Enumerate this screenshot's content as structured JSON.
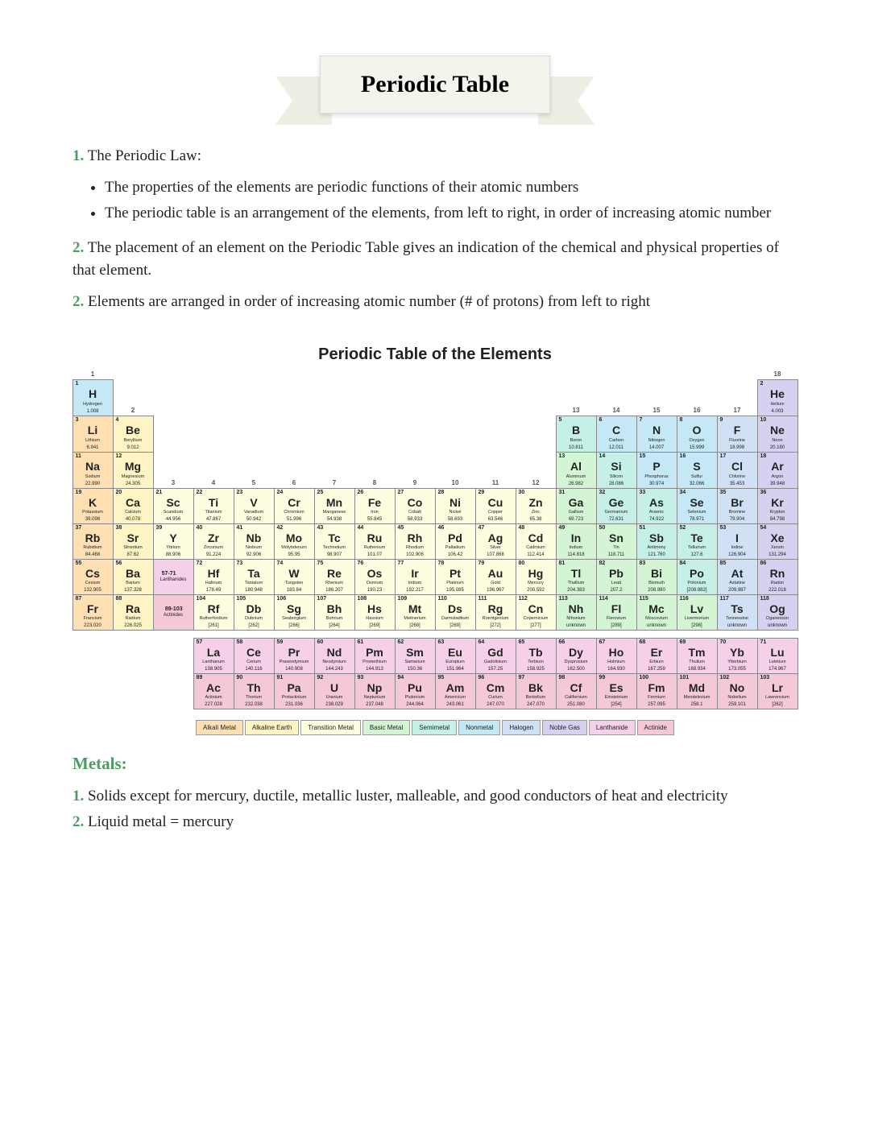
{
  "title": "Periodic Table",
  "sections": {
    "s1_num": "1.",
    "s1_label": " The Periodic Law:",
    "s1_b1": "The properties of the elements are periodic functions of their atomic numbers",
    "s1_b2": "The periodic table is an arrangement of the elements, from left to right, in order of increasing atomic number",
    "s2_num": "2.",
    "s2_text": " The placement of an element on the Periodic Table gives an indication of the chemical and physical properties of that element.",
    "s3_num": "2.",
    "s3_text": " Elements are arranged in order of increasing atomic number (# of protons) from left to right",
    "metals_heading": "Metals:",
    "m1_num": "1.",
    "m1_text": " Solids except for mercury, ductile, metallic luster, malleable, and good conductors of heat and electricity",
    "m2_num": "2.",
    "m2_text": " Liquid metal = mercury"
  },
  "pt_title": "Periodic Table of the Elements",
  "groups": [
    "1",
    "2",
    "3",
    "4",
    "5",
    "6",
    "7",
    "8",
    "9",
    "10",
    "11",
    "12",
    "13",
    "14",
    "15",
    "16",
    "17",
    "18"
  ],
  "colors": {
    "alkali": "#ffe0b3",
    "alkaline": "#fff4c4",
    "transition": "#fffde0",
    "basic": "#d4f5d4",
    "semimetal": "#c4f0e8",
    "nonmetal": "#c4e8f5",
    "halogen": "#d0e0f5",
    "noble": "#d8d0f0",
    "lanthanide": "#f5d0e8",
    "actinide": "#f5c8d8"
  },
  "legend": [
    {
      "label": "Alkali Metal",
      "color": "#ffe0b3"
    },
    {
      "label": "Alkaline Earth",
      "color": "#fff4c4"
    },
    {
      "label": "Transition Metal",
      "color": "#fffde0"
    },
    {
      "label": "Basic Metal",
      "color": "#d4f5d4"
    },
    {
      "label": "Semimetal",
      "color": "#c4f0e8"
    },
    {
      "label": "Nonmetal",
      "color": "#c4e8f5"
    },
    {
      "label": "Halogen",
      "color": "#d0e0f5"
    },
    {
      "label": "Noble Gas",
      "color": "#d8d0f0"
    },
    {
      "label": "Lanthanide",
      "color": "#f5d0e8"
    },
    {
      "label": "Actinide",
      "color": "#f5c8d8"
    }
  ],
  "lan_label": "Lanthanides",
  "act_label": "Actinides",
  "lan_range": "57-71",
  "act_range": "89-103",
  "elements": [
    {
      "z": 1,
      "s": "H",
      "n": "Hydrogen",
      "m": "1.008",
      "c": "nonmetal",
      "r": 1,
      "g": 1
    },
    {
      "z": 2,
      "s": "He",
      "n": "Helium",
      "m": "4.003",
      "c": "noble",
      "r": 1,
      "g": 18
    },
    {
      "z": 3,
      "s": "Li",
      "n": "Lithium",
      "m": "6.941",
      "c": "alkali",
      "r": 2,
      "g": 1
    },
    {
      "z": 4,
      "s": "Be",
      "n": "Beryllium",
      "m": "9.012",
      "c": "alkaline",
      "r": 2,
      "g": 2
    },
    {
      "z": 5,
      "s": "B",
      "n": "Boron",
      "m": "10.811",
      "c": "semimetal",
      "r": 2,
      "g": 13
    },
    {
      "z": 6,
      "s": "C",
      "n": "Carbon",
      "m": "12.011",
      "c": "nonmetal",
      "r": 2,
      "g": 14
    },
    {
      "z": 7,
      "s": "N",
      "n": "Nitrogen",
      "m": "14.007",
      "c": "nonmetal",
      "r": 2,
      "g": 15
    },
    {
      "z": 8,
      "s": "O",
      "n": "Oxygen",
      "m": "15.999",
      "c": "nonmetal",
      "r": 2,
      "g": 16
    },
    {
      "z": 9,
      "s": "F",
      "n": "Fluorine",
      "m": "18.998",
      "c": "halogen",
      "r": 2,
      "g": 17
    },
    {
      "z": 10,
      "s": "Ne",
      "n": "Neon",
      "m": "20.180",
      "c": "noble",
      "r": 2,
      "g": 18
    },
    {
      "z": 11,
      "s": "Na",
      "n": "Sodium",
      "m": "22.990",
      "c": "alkali",
      "r": 3,
      "g": 1
    },
    {
      "z": 12,
      "s": "Mg",
      "n": "Magnesium",
      "m": "24.305",
      "c": "alkaline",
      "r": 3,
      "g": 2
    },
    {
      "z": 13,
      "s": "Al",
      "n": "Aluminum",
      "m": "26.982",
      "c": "basic",
      "r": 3,
      "g": 13
    },
    {
      "z": 14,
      "s": "Si",
      "n": "Silicon",
      "m": "28.086",
      "c": "semimetal",
      "r": 3,
      "g": 14
    },
    {
      "z": 15,
      "s": "P",
      "n": "Phosphorus",
      "m": "30.974",
      "c": "nonmetal",
      "r": 3,
      "g": 15
    },
    {
      "z": 16,
      "s": "S",
      "n": "Sulfur",
      "m": "32.066",
      "c": "nonmetal",
      "r": 3,
      "g": 16
    },
    {
      "z": 17,
      "s": "Cl",
      "n": "Chlorine",
      "m": "35.453",
      "c": "halogen",
      "r": 3,
      "g": 17
    },
    {
      "z": 18,
      "s": "Ar",
      "n": "Argon",
      "m": "39.948",
      "c": "noble",
      "r": 3,
      "g": 18
    },
    {
      "z": 19,
      "s": "K",
      "n": "Potassium",
      "m": "39.098",
      "c": "alkali",
      "r": 4,
      "g": 1
    },
    {
      "z": 20,
      "s": "Ca",
      "n": "Calcium",
      "m": "40.078",
      "c": "alkaline",
      "r": 4,
      "g": 2
    },
    {
      "z": 21,
      "s": "Sc",
      "n": "Scandium",
      "m": "44.956",
      "c": "transition",
      "r": 4,
      "g": 3
    },
    {
      "z": 22,
      "s": "Ti",
      "n": "Titanium",
      "m": "47.867",
      "c": "transition",
      "r": 4,
      "g": 4
    },
    {
      "z": 23,
      "s": "V",
      "n": "Vanadium",
      "m": "50.942",
      "c": "transition",
      "r": 4,
      "g": 5
    },
    {
      "z": 24,
      "s": "Cr",
      "n": "Chromium",
      "m": "51.996",
      "c": "transition",
      "r": 4,
      "g": 6
    },
    {
      "z": 25,
      "s": "Mn",
      "n": "Manganese",
      "m": "54.938",
      "c": "transition",
      "r": 4,
      "g": 7
    },
    {
      "z": 26,
      "s": "Fe",
      "n": "Iron",
      "m": "55.845",
      "c": "transition",
      "r": 4,
      "g": 8
    },
    {
      "z": 27,
      "s": "Co",
      "n": "Cobalt",
      "m": "58.933",
      "c": "transition",
      "r": 4,
      "g": 9
    },
    {
      "z": 28,
      "s": "Ni",
      "n": "Nickel",
      "m": "58.693",
      "c": "transition",
      "r": 4,
      "g": 10
    },
    {
      "z": 29,
      "s": "Cu",
      "n": "Copper",
      "m": "63.546",
      "c": "transition",
      "r": 4,
      "g": 11
    },
    {
      "z": 30,
      "s": "Zn",
      "n": "Zinc",
      "m": "65.38",
      "c": "transition",
      "r": 4,
      "g": 12
    },
    {
      "z": 31,
      "s": "Ga",
      "n": "Gallium",
      "m": "69.723",
      "c": "basic",
      "r": 4,
      "g": 13
    },
    {
      "z": 32,
      "s": "Ge",
      "n": "Germanium",
      "m": "72.631",
      "c": "semimetal",
      "r": 4,
      "g": 14
    },
    {
      "z": 33,
      "s": "As",
      "n": "Arsenic",
      "m": "74.922",
      "c": "semimetal",
      "r": 4,
      "g": 15
    },
    {
      "z": 34,
      "s": "Se",
      "n": "Selenium",
      "m": "78.971",
      "c": "nonmetal",
      "r": 4,
      "g": 16
    },
    {
      "z": 35,
      "s": "Br",
      "n": "Bromine",
      "m": "79.904",
      "c": "halogen",
      "r": 4,
      "g": 17
    },
    {
      "z": 36,
      "s": "Kr",
      "n": "Krypton",
      "m": "84.798",
      "c": "noble",
      "r": 4,
      "g": 18
    },
    {
      "z": 37,
      "s": "Rb",
      "n": "Rubidium",
      "m": "84.468",
      "c": "alkali",
      "r": 5,
      "g": 1
    },
    {
      "z": 38,
      "s": "Sr",
      "n": "Strontium",
      "m": "87.62",
      "c": "alkaline",
      "r": 5,
      "g": 2
    },
    {
      "z": 39,
      "s": "Y",
      "n": "Yttrium",
      "m": "88.906",
      "c": "transition",
      "r": 5,
      "g": 3
    },
    {
      "z": 40,
      "s": "Zr",
      "n": "Zirconium",
      "m": "91.224",
      "c": "transition",
      "r": 5,
      "g": 4
    },
    {
      "z": 41,
      "s": "Nb",
      "n": "Niobium",
      "m": "92.906",
      "c": "transition",
      "r": 5,
      "g": 5
    },
    {
      "z": 42,
      "s": "Mo",
      "n": "Molybdenum",
      "m": "95.95",
      "c": "transition",
      "r": 5,
      "g": 6
    },
    {
      "z": 43,
      "s": "Tc",
      "n": "Technetium",
      "m": "98.907",
      "c": "transition",
      "r": 5,
      "g": 7
    },
    {
      "z": 44,
      "s": "Ru",
      "n": "Ruthenium",
      "m": "101.07",
      "c": "transition",
      "r": 5,
      "g": 8
    },
    {
      "z": 45,
      "s": "Rh",
      "n": "Rhodium",
      "m": "102.906",
      "c": "transition",
      "r": 5,
      "g": 9
    },
    {
      "z": 46,
      "s": "Pd",
      "n": "Palladium",
      "m": "106.42",
      "c": "transition",
      "r": 5,
      "g": 10
    },
    {
      "z": 47,
      "s": "Ag",
      "n": "Silver",
      "m": "107.868",
      "c": "transition",
      "r": 5,
      "g": 11
    },
    {
      "z": 48,
      "s": "Cd",
      "n": "Cadmium",
      "m": "112.414",
      "c": "transition",
      "r": 5,
      "g": 12
    },
    {
      "z": 49,
      "s": "In",
      "n": "Indium",
      "m": "114.818",
      "c": "basic",
      "r": 5,
      "g": 13
    },
    {
      "z": 50,
      "s": "Sn",
      "n": "Tin",
      "m": "118.711",
      "c": "basic",
      "r": 5,
      "g": 14
    },
    {
      "z": 51,
      "s": "Sb",
      "n": "Antimony",
      "m": "121.760",
      "c": "semimetal",
      "r": 5,
      "g": 15
    },
    {
      "z": 52,
      "s": "Te",
      "n": "Tellurium",
      "m": "127.6",
      "c": "semimetal",
      "r": 5,
      "g": 16
    },
    {
      "z": 53,
      "s": "I",
      "n": "Iodine",
      "m": "126.904",
      "c": "halogen",
      "r": 5,
      "g": 17
    },
    {
      "z": 54,
      "s": "Xe",
      "n": "Xenon",
      "m": "131.294",
      "c": "noble",
      "r": 5,
      "g": 18
    },
    {
      "z": 55,
      "s": "Cs",
      "n": "Cesium",
      "m": "132.905",
      "c": "alkali",
      "r": 6,
      "g": 1
    },
    {
      "z": 56,
      "s": "Ba",
      "n": "Barium",
      "m": "137.328",
      "c": "alkaline",
      "r": 6,
      "g": 2
    },
    {
      "z": 72,
      "s": "Hf",
      "n": "Hafnium",
      "m": "178.49",
      "c": "transition",
      "r": 6,
      "g": 4
    },
    {
      "z": 73,
      "s": "Ta",
      "n": "Tantalum",
      "m": "180.948",
      "c": "transition",
      "r": 6,
      "g": 5
    },
    {
      "z": 74,
      "s": "W",
      "n": "Tungsten",
      "m": "183.84",
      "c": "transition",
      "r": 6,
      "g": 6
    },
    {
      "z": 75,
      "s": "Re",
      "n": "Rhenium",
      "m": "186.207",
      "c": "transition",
      "r": 6,
      "g": 7
    },
    {
      "z": 76,
      "s": "Os",
      "n": "Osmium",
      "m": "190.23",
      "c": "transition",
      "r": 6,
      "g": 8
    },
    {
      "z": 77,
      "s": "Ir",
      "n": "Iridium",
      "m": "192.217",
      "c": "transition",
      "r": 6,
      "g": 9
    },
    {
      "z": 78,
      "s": "Pt",
      "n": "Platinum",
      "m": "195.085",
      "c": "transition",
      "r": 6,
      "g": 10
    },
    {
      "z": 79,
      "s": "Au",
      "n": "Gold",
      "m": "196.967",
      "c": "transition",
      "r": 6,
      "g": 11
    },
    {
      "z": 80,
      "s": "Hg",
      "n": "Mercury",
      "m": "200.592",
      "c": "transition",
      "r": 6,
      "g": 12
    },
    {
      "z": 81,
      "s": "Tl",
      "n": "Thallium",
      "m": "204.383",
      "c": "basic",
      "r": 6,
      "g": 13
    },
    {
      "z": 82,
      "s": "Pb",
      "n": "Lead",
      "m": "207.2",
      "c": "basic",
      "r": 6,
      "g": 14
    },
    {
      "z": 83,
      "s": "Bi",
      "n": "Bismuth",
      "m": "208.980",
      "c": "basic",
      "r": 6,
      "g": 15
    },
    {
      "z": 84,
      "s": "Po",
      "n": "Polonium",
      "m": "[208.982]",
      "c": "semimetal",
      "r": 6,
      "g": 16
    },
    {
      "z": 85,
      "s": "At",
      "n": "Astatine",
      "m": "209.987",
      "c": "halogen",
      "r": 6,
      "g": 17
    },
    {
      "z": 86,
      "s": "Rn",
      "n": "Radon",
      "m": "222.018",
      "c": "noble",
      "r": 6,
      "g": 18
    },
    {
      "z": 87,
      "s": "Fr",
      "n": "Francium",
      "m": "223.020",
      "c": "alkali",
      "r": 7,
      "g": 1
    },
    {
      "z": 88,
      "s": "Ra",
      "n": "Radium",
      "m": "226.025",
      "c": "alkaline",
      "r": 7,
      "g": 2
    },
    {
      "z": 104,
      "s": "Rf",
      "n": "Rutherfordium",
      "m": "[261]",
      "c": "transition",
      "r": 7,
      "g": 4
    },
    {
      "z": 105,
      "s": "Db",
      "n": "Dubnium",
      "m": "[262]",
      "c": "transition",
      "r": 7,
      "g": 5
    },
    {
      "z": 106,
      "s": "Sg",
      "n": "Seaborgium",
      "m": "[266]",
      "c": "transition",
      "r": 7,
      "g": 6
    },
    {
      "z": 107,
      "s": "Bh",
      "n": "Bohrium",
      "m": "[264]",
      "c": "transition",
      "r": 7,
      "g": 7
    },
    {
      "z": 108,
      "s": "Hs",
      "n": "Hassium",
      "m": "[269]",
      "c": "transition",
      "r": 7,
      "g": 8
    },
    {
      "z": 109,
      "s": "Mt",
      "n": "Meitnerium",
      "m": "[268]",
      "c": "transition",
      "r": 7,
      "g": 9
    },
    {
      "z": 110,
      "s": "Ds",
      "n": "Darmstadtium",
      "m": "[269]",
      "c": "transition",
      "r": 7,
      "g": 10
    },
    {
      "z": 111,
      "s": "Rg",
      "n": "Roentgenium",
      "m": "[272]",
      "c": "transition",
      "r": 7,
      "g": 11
    },
    {
      "z": 112,
      "s": "Cn",
      "n": "Copernicium",
      "m": "[277]",
      "c": "transition",
      "r": 7,
      "g": 12
    },
    {
      "z": 113,
      "s": "Nh",
      "n": "Nihonium",
      "m": "unknown",
      "c": "basic",
      "r": 7,
      "g": 13
    },
    {
      "z": 114,
      "s": "Fl",
      "n": "Flerovium",
      "m": "[289]",
      "c": "basic",
      "r": 7,
      "g": 14
    },
    {
      "z": 115,
      "s": "Mc",
      "n": "Moscovium",
      "m": "unknown",
      "c": "basic",
      "r": 7,
      "g": 15
    },
    {
      "z": 116,
      "s": "Lv",
      "n": "Livermorium",
      "m": "[298]",
      "c": "basic",
      "r": 7,
      "g": 16
    },
    {
      "z": 117,
      "s": "Ts",
      "n": "Tennessine",
      "m": "unknown",
      "c": "halogen",
      "r": 7,
      "g": 17
    },
    {
      "z": 118,
      "s": "Og",
      "n": "Oganesson",
      "m": "unknown",
      "c": "noble",
      "r": 7,
      "g": 18
    }
  ],
  "lanthanides": [
    {
      "z": 57,
      "s": "La",
      "n": "Lanthanum",
      "m": "138.905",
      "c": "lanthanide"
    },
    {
      "z": 58,
      "s": "Ce",
      "n": "Cerium",
      "m": "140.116",
      "c": "lanthanide"
    },
    {
      "z": 59,
      "s": "Pr",
      "n": "Praseodymium",
      "m": "140.908",
      "c": "lanthanide"
    },
    {
      "z": 60,
      "s": "Nd",
      "n": "Neodymium",
      "m": "144.243",
      "c": "lanthanide"
    },
    {
      "z": 61,
      "s": "Pm",
      "n": "Promethium",
      "m": "144.913",
      "c": "lanthanide"
    },
    {
      "z": 62,
      "s": "Sm",
      "n": "Samarium",
      "m": "150.36",
      "c": "lanthanide"
    },
    {
      "z": 63,
      "s": "Eu",
      "n": "Europium",
      "m": "151.964",
      "c": "lanthanide"
    },
    {
      "z": 64,
      "s": "Gd",
      "n": "Gadolinium",
      "m": "157.25",
      "c": "lanthanide"
    },
    {
      "z": 65,
      "s": "Tb",
      "n": "Terbium",
      "m": "158.925",
      "c": "lanthanide"
    },
    {
      "z": 66,
      "s": "Dy",
      "n": "Dysprosium",
      "m": "162.500",
      "c": "lanthanide"
    },
    {
      "z": 67,
      "s": "Ho",
      "n": "Holmium",
      "m": "164.930",
      "c": "lanthanide"
    },
    {
      "z": 68,
      "s": "Er",
      "n": "Erbium",
      "m": "167.259",
      "c": "lanthanide"
    },
    {
      "z": 69,
      "s": "Tm",
      "n": "Thulium",
      "m": "168.934",
      "c": "lanthanide"
    },
    {
      "z": 70,
      "s": "Yb",
      "n": "Ytterbium",
      "m": "173.055",
      "c": "lanthanide"
    },
    {
      "z": 71,
      "s": "Lu",
      "n": "Lutetium",
      "m": "174.967",
      "c": "lanthanide"
    }
  ],
  "actinides": [
    {
      "z": 89,
      "s": "Ac",
      "n": "Actinium",
      "m": "227.028",
      "c": "actinide"
    },
    {
      "z": 90,
      "s": "Th",
      "n": "Thorium",
      "m": "232.038",
      "c": "actinide"
    },
    {
      "z": 91,
      "s": "Pa",
      "n": "Protactinium",
      "m": "231.036",
      "c": "actinide"
    },
    {
      "z": 92,
      "s": "U",
      "n": "Uranium",
      "m": "238.029",
      "c": "actinide"
    },
    {
      "z": 93,
      "s": "Np",
      "n": "Neptunium",
      "m": "237.048",
      "c": "actinide"
    },
    {
      "z": 94,
      "s": "Pu",
      "n": "Plutonium",
      "m": "244.064",
      "c": "actinide"
    },
    {
      "z": 95,
      "s": "Am",
      "n": "Americium",
      "m": "243.061",
      "c": "actinide"
    },
    {
      "z": 96,
      "s": "Cm",
      "n": "Curium",
      "m": "247.070",
      "c": "actinide"
    },
    {
      "z": 97,
      "s": "Bk",
      "n": "Berkelium",
      "m": "247.070",
      "c": "actinide"
    },
    {
      "z": 98,
      "s": "Cf",
      "n": "Californium",
      "m": "251.080",
      "c": "actinide"
    },
    {
      "z": 99,
      "s": "Es",
      "n": "Einsteinium",
      "m": "[254]",
      "c": "actinide"
    },
    {
      "z": 100,
      "s": "Fm",
      "n": "Fermium",
      "m": "257.095",
      "c": "actinide"
    },
    {
      "z": 101,
      "s": "Md",
      "n": "Mendelevium",
      "m": "258.1",
      "c": "actinide"
    },
    {
      "z": 102,
      "s": "No",
      "n": "Nobelium",
      "m": "259.101",
      "c": "actinide"
    },
    {
      "z": 103,
      "s": "Lr",
      "n": "Lawrencium",
      "m": "[262]",
      "c": "actinide"
    }
  ]
}
